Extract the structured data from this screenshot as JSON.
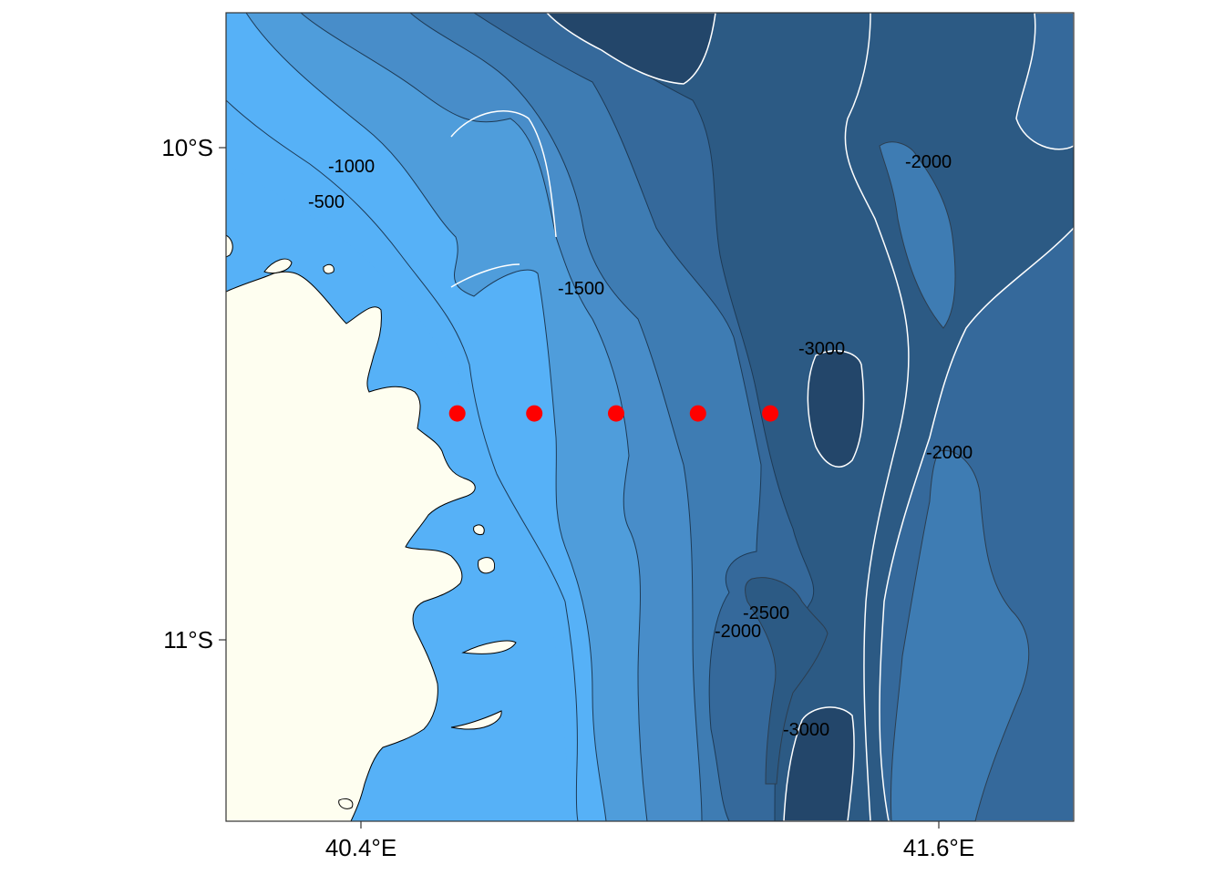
{
  "map": {
    "y_ticks": [
      {
        "label": "10°S",
        "lat": -10.0
      },
      {
        "label": "11°S",
        "lat": -11.0
      }
    ],
    "x_ticks": [
      {
        "label": "40.4°E",
        "lon": 40.4
      },
      {
        "label": "41.6°E",
        "lon": 41.6
      }
    ],
    "extent": {
      "lon_min": 40.11,
      "lon_max": 41.83,
      "lat_min": -11.37,
      "lat_max": -9.73
    },
    "contour_labels": [
      "-1000",
      "-500",
      "-1500",
      "-2000",
      "-3000",
      "-2000",
      "-2500",
      "-2000",
      "-3000"
    ],
    "stations": [
      {
        "lon": 40.6,
        "lat": -10.54
      },
      {
        "lon": 40.76,
        "lat": -10.54
      },
      {
        "lon": 40.93,
        "lat": -10.54
      },
      {
        "lon": 41.1,
        "lat": -10.54
      },
      {
        "lon": 41.25,
        "lat": -10.54
      }
    ],
    "colors": {
      "land": "#fefef0",
      "depth_0_500": "#56b1f7",
      "depth_500_1000": "#4f9ddb",
      "depth_1000_1500": "#488dc9",
      "depth_1500_2000": "#3e7cb3",
      "depth_2000_2500": "#35699b",
      "depth_2500_3000": "#2c5a84",
      "depth_3000_plus": "#23466a",
      "station": "#ff0000"
    }
  }
}
